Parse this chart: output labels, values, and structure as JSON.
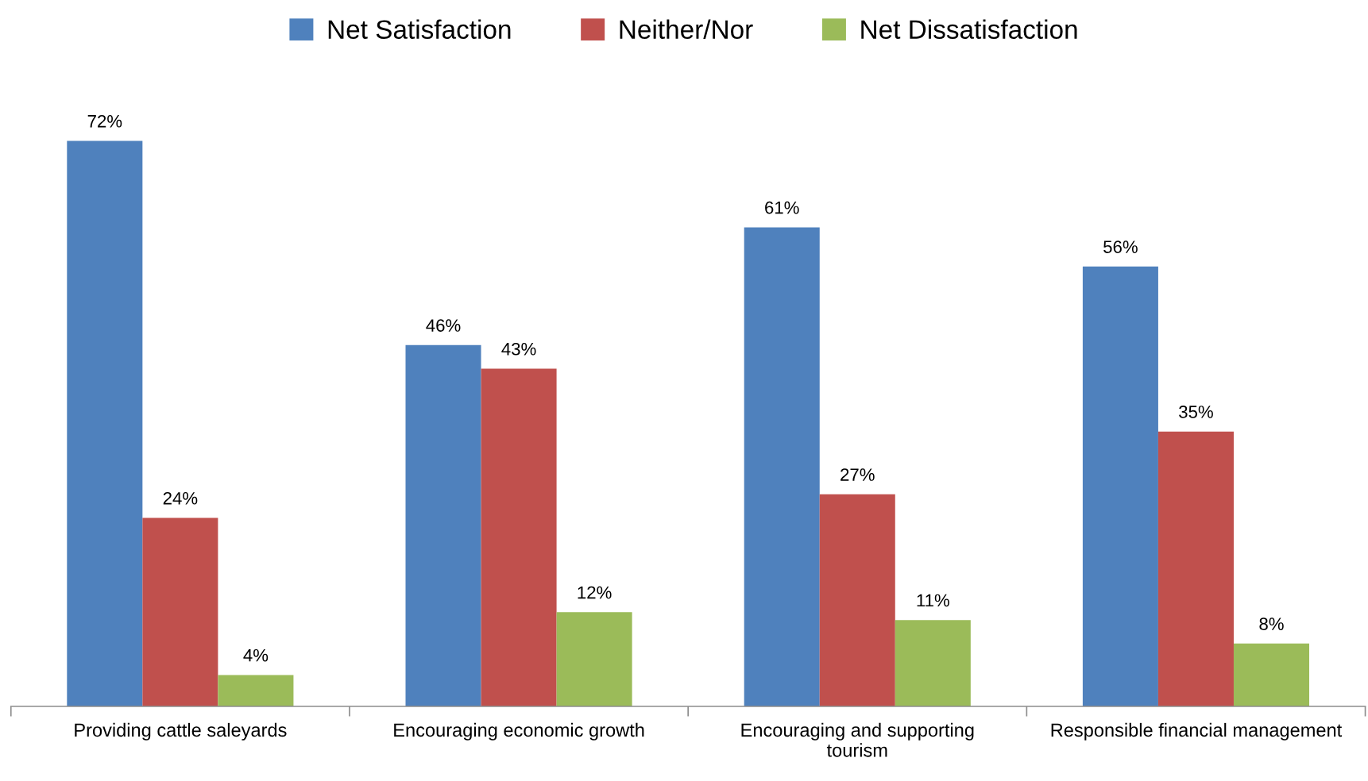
{
  "chart_data": {
    "type": "bar",
    "categories": [
      "Providing cattle saleyards",
      "Encouraging economic growth",
      "Encouraging and supporting\ntourism",
      "Responsible financial management"
    ],
    "series": [
      {
        "name": "Net Satisfaction",
        "color": "#4f81bd",
        "values": [
          72,
          46,
          61,
          56
        ],
        "value_labels": [
          "72%",
          "46%",
          "61%",
          "56%"
        ]
      },
      {
        "name": "Neither/Nor",
        "color": "#c0504d",
        "values": [
          24,
          43,
          27,
          35
        ],
        "value_labels": [
          "24%",
          "43%",
          "27%",
          "35%"
        ]
      },
      {
        "name": "Net Dissatisfaction",
        "color": "#9bbb59",
        "values": [
          4,
          12,
          11,
          8
        ],
        "value_labels": [
          "4%",
          "12%",
          "11%",
          "8%"
        ]
      }
    ],
    "tick_labels": "x",
    "legend": "top",
    "grid": false
  }
}
